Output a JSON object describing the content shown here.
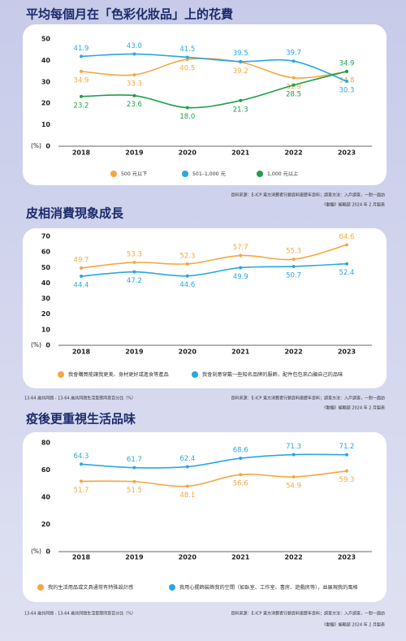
{
  "chart_data": [
    {
      "type": "line",
      "title": "平均每個月在「色彩化妝品」上的花費",
      "categories": [
        "2018",
        "2019",
        "2020",
        "2021",
        "2022",
        "2023"
      ],
      "series": [
        {
          "name": "500 元以下",
          "color": "#f5a742",
          "values": [
            34.9,
            33.3,
            40.5,
            39.2,
            31.9,
            34.8
          ],
          "value_labels": [
            "34.9",
            "33.3",
            "40.5",
            "39.2",
            "31.9",
            "34.8"
          ]
        },
        {
          "name": "501–1,000 元",
          "color": "#2aa7e0",
          "values": [
            41.9,
            43.0,
            41.5,
            39.5,
            39.7,
            30.3
          ],
          "value_labels": [
            "41.9",
            "43.0",
            "41.5",
            "39.5",
            "39.7",
            "30.3"
          ]
        },
        {
          "name": "1,000 元以上",
          "color": "#1f9e4a",
          "values": [
            23.2,
            23.6,
            18.0,
            21.3,
            28.5,
            34.9
          ],
          "value_labels": [
            "23.2",
            "23.6",
            "18.0",
            "21.3",
            "28.5",
            "34.9"
          ]
        }
      ],
      "ylim": [
        0,
        50
      ],
      "yticks": [
        0,
        10,
        20,
        30,
        40,
        50
      ],
      "ylabel": "(%)",
      "source": "資料來源：E-ICP 東方消費者行銷資料庫歷年資料；調查方法：入戶調查，一對一面訪",
      "credit": "《動腦》編輯部 2024 年 2 月製表"
    },
    {
      "type": "line",
      "title": "皮相消費現象成長",
      "categories": [
        "2018",
        "2019",
        "2020",
        "2021",
        "2022",
        "2023"
      ],
      "series": [
        {
          "name": "我會購買能讓我更美、身材更好或進食等產品",
          "color": "#f5a742",
          "values": [
            49.7,
            53.3,
            52.3,
            57.7,
            55.3,
            64.6
          ]
        },
        {
          "name": "我會刻意穿戴一些知名品牌的服飾，配件包包來凸顯自己的品味",
          "color": "#2aa7e0",
          "values": [
            44.4,
            47.2,
            44.6,
            49.9,
            50.7,
            52.4
          ]
        }
      ],
      "ylim": [
        0,
        70
      ],
      "yticks": [
        0,
        10,
        20,
        30,
        40,
        50,
        60,
        70
      ],
      "ylabel": "(%)",
      "note": "13-64 歲共同題 - 13-64 歲共同題生活型態同意百分比（%）",
      "source": "資料來源：E-ICP 東方消費者行銷資料庫歷年資料；調查方法：入戶調查，一對一面訪",
      "credit": "《動腦》編輯部 2024 年 2 月製表"
    },
    {
      "type": "line",
      "title": "疫後更重視生活品味",
      "categories": [
        "2018",
        "2019",
        "2020",
        "2021",
        "2022",
        "2023"
      ],
      "series": [
        {
          "name": "我的生活用品或文具通常有特殊設計感",
          "color": "#f5a742",
          "values": [
            51.7,
            51.5,
            48.1,
            56.6,
            54.9,
            59.3
          ]
        },
        {
          "name": "我用心擺飾裝飾我的空間（如臥室、工作室、書房、遊戲房等），並展現我的風格",
          "color": "#2aa7e0",
          "values": [
            64.3,
            61.7,
            62.4,
            68.6,
            71.3,
            71.2
          ]
        }
      ],
      "ylim": [
        0,
        80
      ],
      "yticks": [
        0,
        20,
        40,
        60,
        80
      ],
      "ylabel": "(%)",
      "note": "13-64 歲共同題 - 13-64 歲共同題生活型態同意百分比（%）",
      "source": "資料來源：E-ICP 東方消費者行銷資料庫歷年資料；調查方法：入戶調查，一對一面訪",
      "credit": "《動腦》編輯部 2024 年 2 月製表"
    }
  ]
}
